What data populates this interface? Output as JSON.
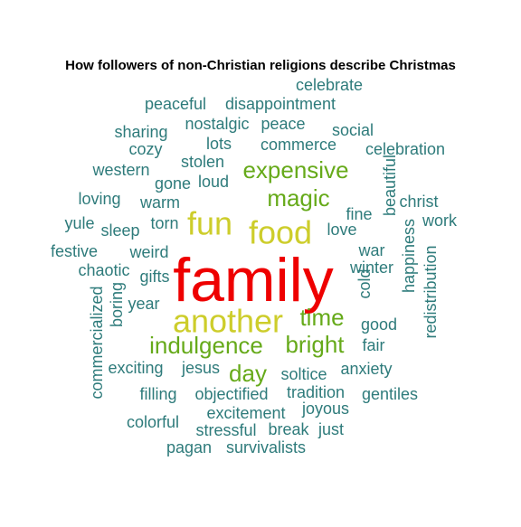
{
  "chart_data": {
    "type": "wordcloud",
    "title": "How followers of non-Christian religions describe Christmas",
    "colors": {
      "top": "#ee0000",
      "high": "#cdcd2b",
      "mid": "#66aa1a",
      "base": "#2e7b7b"
    },
    "words": [
      {
        "word": "family",
        "tier": "top"
      },
      {
        "word": "fun",
        "tier": "high"
      },
      {
        "word": "food",
        "tier": "high"
      },
      {
        "word": "another",
        "tier": "high"
      },
      {
        "word": "expensive",
        "tier": "mid"
      },
      {
        "word": "magic",
        "tier": "mid"
      },
      {
        "word": "time",
        "tier": "mid"
      },
      {
        "word": "indulgence",
        "tier": "mid"
      },
      {
        "word": "bright",
        "tier": "mid"
      },
      {
        "word": "day",
        "tier": "mid"
      },
      {
        "word": "celebrate",
        "tier": "base"
      },
      {
        "word": "peaceful",
        "tier": "base"
      },
      {
        "word": "disappointment",
        "tier": "base"
      },
      {
        "word": "sharing",
        "tier": "base"
      },
      {
        "word": "nostalgic",
        "tier": "base"
      },
      {
        "word": "peace",
        "tier": "base"
      },
      {
        "word": "social",
        "tier": "base"
      },
      {
        "word": "cozy",
        "tier": "base"
      },
      {
        "word": "lots",
        "tier": "base"
      },
      {
        "word": "commerce",
        "tier": "base"
      },
      {
        "word": "celebration",
        "tier": "base"
      },
      {
        "word": "stolen",
        "tier": "base"
      },
      {
        "word": "western",
        "tier": "base"
      },
      {
        "word": "gone",
        "tier": "base"
      },
      {
        "word": "loud",
        "tier": "base"
      },
      {
        "word": "beautiful",
        "tier": "base"
      },
      {
        "word": "loving",
        "tier": "base"
      },
      {
        "word": "warm",
        "tier": "base"
      },
      {
        "word": "christ",
        "tier": "base"
      },
      {
        "word": "fine",
        "tier": "base"
      },
      {
        "word": "yule",
        "tier": "base"
      },
      {
        "word": "sleep",
        "tier": "base"
      },
      {
        "word": "torn",
        "tier": "base"
      },
      {
        "word": "love",
        "tier": "base"
      },
      {
        "word": "work",
        "tier": "base"
      },
      {
        "word": "festive",
        "tier": "base"
      },
      {
        "word": "weird",
        "tier": "base"
      },
      {
        "word": "war",
        "tier": "base"
      },
      {
        "word": "happiness",
        "tier": "base"
      },
      {
        "word": "chaotic",
        "tier": "base"
      },
      {
        "word": "gifts",
        "tier": "base"
      },
      {
        "word": "winter",
        "tier": "base"
      },
      {
        "word": "redistribution",
        "tier": "base"
      },
      {
        "word": "commercialized",
        "tier": "base"
      },
      {
        "word": "boring",
        "tier": "base"
      },
      {
        "word": "year",
        "tier": "base"
      },
      {
        "word": "cold",
        "tier": "base"
      },
      {
        "word": "good",
        "tier": "base"
      },
      {
        "word": "fair",
        "tier": "base"
      },
      {
        "word": "exciting",
        "tier": "base"
      },
      {
        "word": "jesus",
        "tier": "base"
      },
      {
        "word": "soltice",
        "tier": "base"
      },
      {
        "word": "anxiety",
        "tier": "base"
      },
      {
        "word": "filling",
        "tier": "base"
      },
      {
        "word": "objectified",
        "tier": "base"
      },
      {
        "word": "tradition",
        "tier": "base"
      },
      {
        "word": "gentiles",
        "tier": "base"
      },
      {
        "word": "excitement",
        "tier": "base"
      },
      {
        "word": "joyous",
        "tier": "base"
      },
      {
        "word": "colorful",
        "tier": "base"
      },
      {
        "word": "stressful",
        "tier": "base"
      },
      {
        "word": "break",
        "tier": "base"
      },
      {
        "word": "just",
        "tier": "base"
      },
      {
        "word": "pagan",
        "tier": "base"
      },
      {
        "word": "survivalists",
        "tier": "base"
      }
    ]
  }
}
